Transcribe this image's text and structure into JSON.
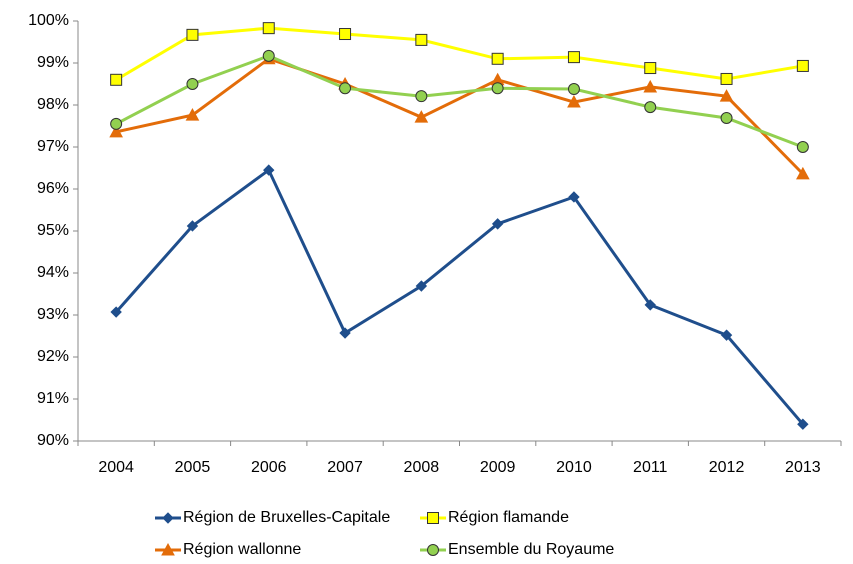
{
  "chart_data": {
    "type": "line",
    "categories": [
      "2004",
      "2005",
      "2006",
      "2007",
      "2008",
      "2009",
      "2010",
      "2011",
      "2012",
      "2013"
    ],
    "series": [
      {
        "name": "Région de Bruxelles-Capitale",
        "color": "#1f4e8c",
        "marker": "diamond",
        "marker_fill": "#1f4e8c",
        "values": [
          93.07,
          95.12,
          96.45,
          92.57,
          93.69,
          95.17,
          95.81,
          93.24,
          92.52,
          90.4
        ]
      },
      {
        "name": "Région flamande",
        "color": "#ffff00",
        "marker": "square",
        "marker_fill": "#ffff00",
        "values": [
          98.6,
          99.67,
          99.83,
          99.69,
          99.55,
          99.1,
          99.14,
          98.88,
          98.62,
          98.93
        ]
      },
      {
        "name": "Région wallonne",
        "color": "#e36c09",
        "marker": "triangle",
        "marker_fill": "#e36c09",
        "values": [
          97.36,
          97.76,
          99.1,
          98.5,
          97.71,
          98.6,
          98.07,
          98.43,
          98.21,
          96.36
        ]
      },
      {
        "name": "Ensemble du Royaume",
        "color": "#92d050",
        "marker": "circle",
        "marker_fill": "#92d050",
        "values": [
          97.55,
          98.5,
          99.17,
          98.4,
          98.21,
          98.4,
          98.38,
          97.95,
          97.69,
          97.0
        ]
      }
    ],
    "ylim": [
      90,
      100
    ],
    "yticks": [
      {
        "value": 90,
        "label": "90%"
      },
      {
        "value": 91,
        "label": "91%"
      },
      {
        "value": 92,
        "label": "92%"
      },
      {
        "value": 93,
        "label": "93%"
      },
      {
        "value": 94,
        "label": "94%"
      },
      {
        "value": 95,
        "label": "95%"
      },
      {
        "value": 96,
        "label": "96%"
      },
      {
        "value": 97,
        "label": "97%"
      },
      {
        "value": 98,
        "label": "98%"
      },
      {
        "value": 99,
        "label": "99%"
      },
      {
        "value": 100,
        "label": "100%"
      }
    ],
    "grid": false
  }
}
